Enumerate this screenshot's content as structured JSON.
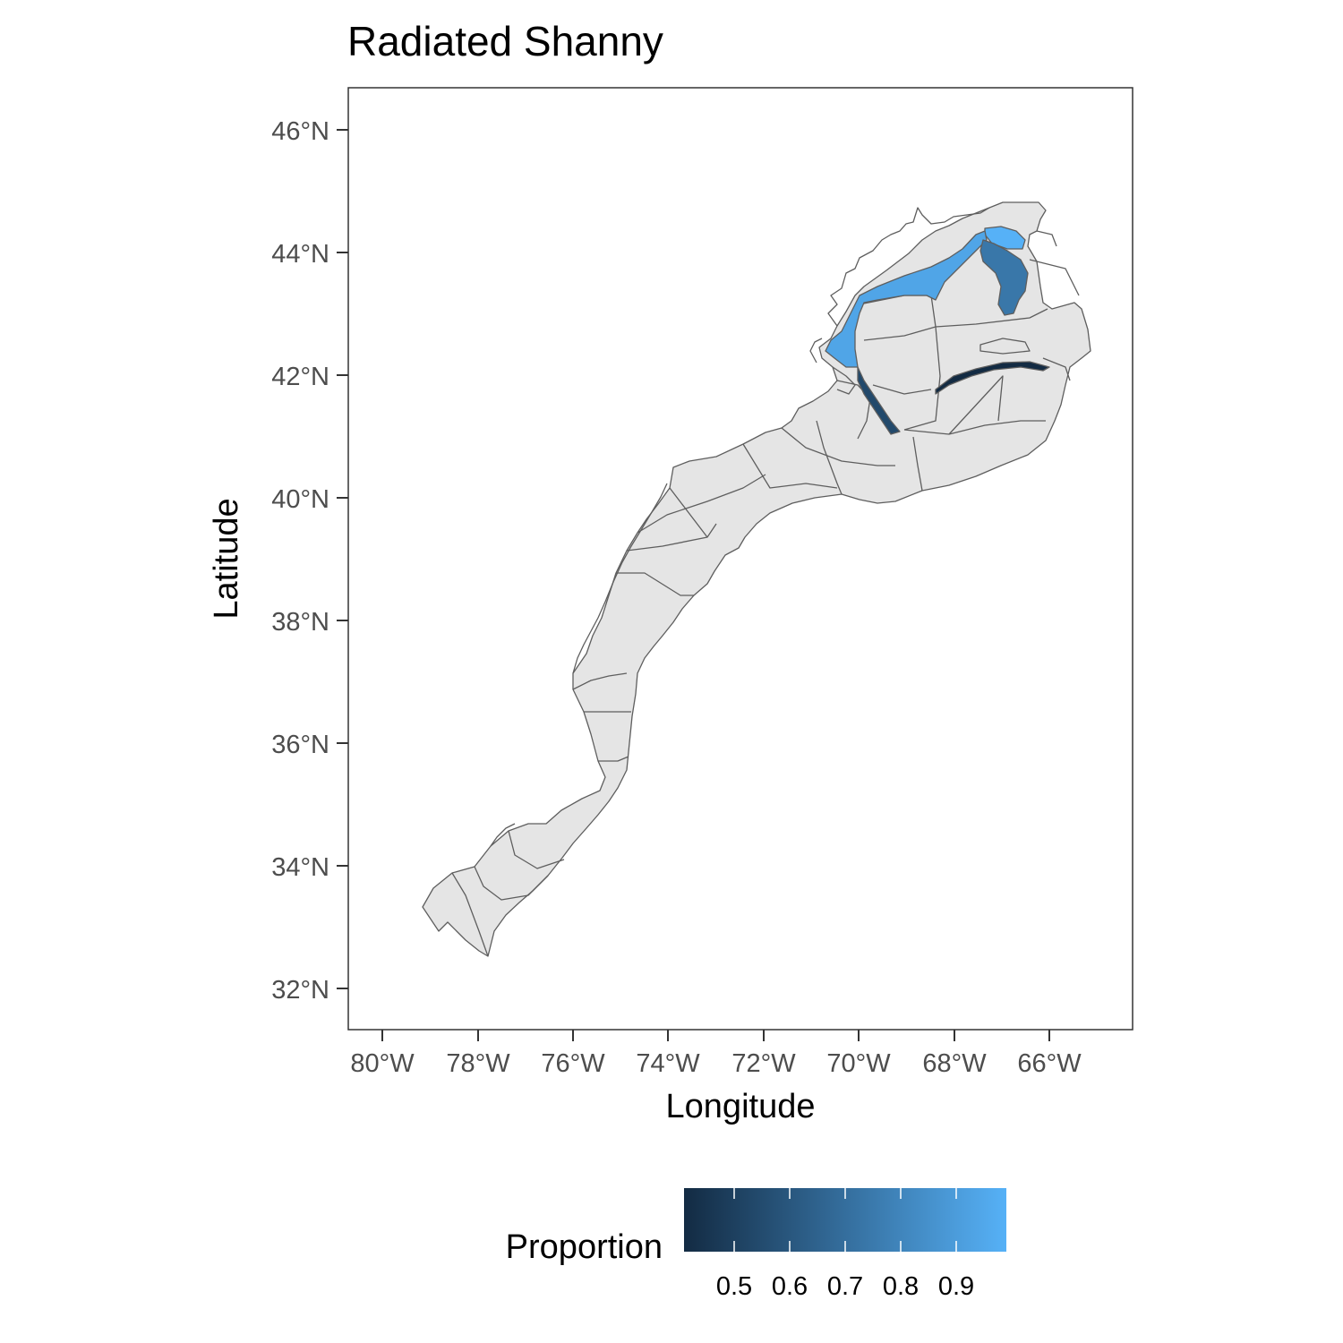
{
  "title": "Radiated Shanny",
  "x_axis": {
    "label": "Longitude",
    "ticks": [
      "80°W",
      "78°W",
      "76°W",
      "74°W",
      "72°W",
      "70°W",
      "68°W",
      "66°W"
    ]
  },
  "y_axis": {
    "label": "Latitude",
    "ticks": [
      "32°N",
      "34°N",
      "36°N",
      "38°N",
      "40°N",
      "42°N",
      "44°N",
      "46°N"
    ]
  },
  "legend": {
    "title": "Proportion",
    "position": "bottom",
    "ticks": [
      "0.5",
      "0.6",
      "0.7",
      "0.8",
      "0.9"
    ],
    "color_low": "#132b43",
    "color_high": "#56b1f7"
  },
  "colors": {
    "background": "#ffffff",
    "land_fill": "#e5e5e5",
    "stroke": "#5e5e5e",
    "panel_border": "#333333"
  },
  "chart_data": {
    "type": "choropleth",
    "title": "Radiated Shanny",
    "xlabel": "Longitude",
    "ylabel": "Latitude",
    "xlim": [
      -80.8,
      -64.3
    ],
    "ylim": [
      31.3,
      46.7
    ],
    "fill_variable": "Proportion",
    "fill_range": [
      0.42,
      1.0
    ],
    "regions": [
      {
        "name": "",
        "value": 1.0
      },
      {
        "name": "",
        "value": 0.95
      },
      {
        "name": "",
        "value": 0.75
      },
      {
        "name": "",
        "value": 0.55
      },
      {
        "name": "",
        "value": 0.42
      }
    ]
  }
}
